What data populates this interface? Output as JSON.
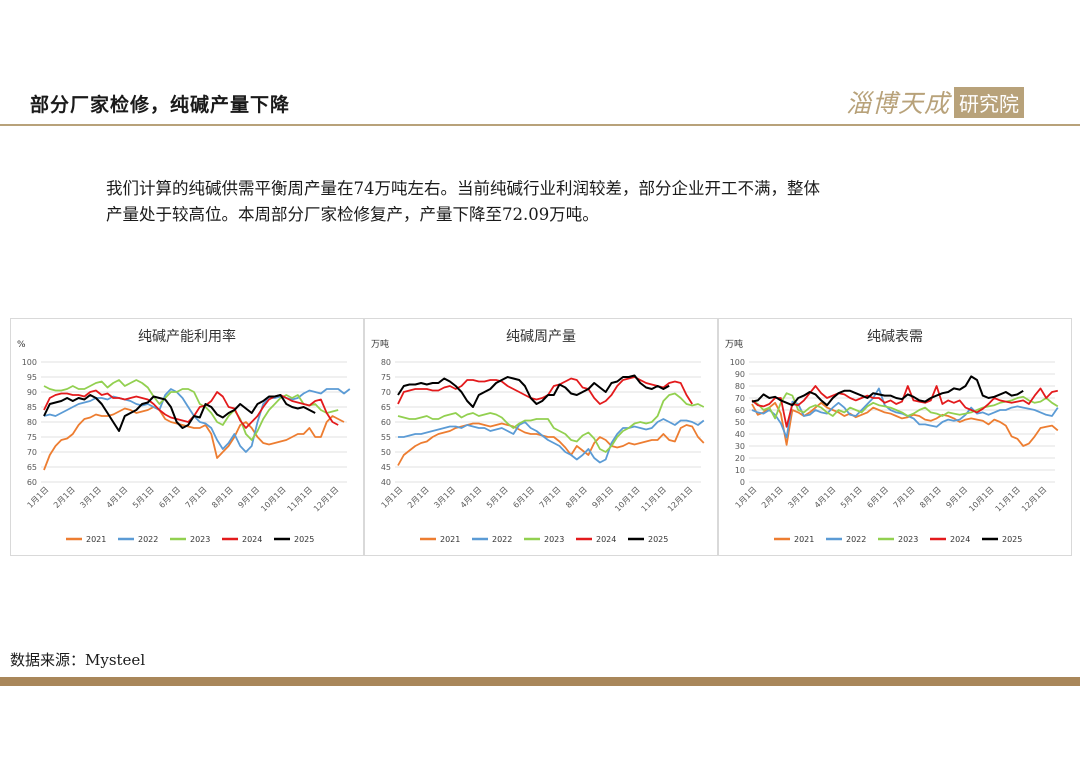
{
  "header": {
    "title": "部分厂家检修，纯碱产量下降",
    "logo_text": "淄博天成",
    "logo_box": "研究院"
  },
  "body": {
    "line1": "我们计算的纯碱供需平衡周产量在74万吨左右。当前纯碱行业利润较差，部分企业开工不满，整体",
    "line2": "产量处于较高位。本周部分厂家检修复产，产量下降至72.09万吨。"
  },
  "footer": {
    "source": "数据来源：Mysteel"
  },
  "colors": {
    "2021": "#ed7d31",
    "2022": "#5b9bd5",
    "2023": "#92d050",
    "2024": "#e31a1c",
    "2025": "#000000",
    "accent": "#b8a27a"
  },
  "chart_data": [
    {
      "type": "line",
      "title": "纯碱产能利用率",
      "unit": "%",
      "ylim": [
        60,
        100
      ],
      "yticks": [
        60,
        65,
        70,
        75,
        80,
        85,
        90,
        95,
        100
      ],
      "xticks": [
        "1月1日",
        "2月1日",
        "3月1日",
        "4月1日",
        "5月1日",
        "6月1日",
        "7月1日",
        "8月1日",
        "9月1日",
        "10月1日",
        "11月1日",
        "12月1日"
      ],
      "series": [
        {
          "name": "2021",
          "values": [
            64,
            69,
            72,
            74,
            74.5,
            76,
            79,
            81,
            81.5,
            82.5,
            82,
            82,
            82.5,
            83.5,
            84.5,
            84,
            83,
            83.5,
            84,
            85,
            84,
            81,
            80,
            79.5,
            79,
            78.5,
            78,
            78,
            79,
            76,
            68,
            70,
            72,
            75,
            79,
            80,
            78,
            75,
            73,
            72.5,
            73,
            73.5,
            74,
            75,
            76,
            76,
            78,
            75,
            75,
            80,
            82,
            81,
            80
          ]
        },
        {
          "name": "2022",
          "values": [
            82,
            82.5,
            82,
            83,
            84,
            85,
            86,
            86.5,
            87,
            88,
            88,
            87.5,
            88.5,
            88,
            87.5,
            87,
            86,
            85.5,
            86,
            85,
            84,
            89,
            91,
            90,
            88,
            85,
            82,
            80,
            79.5,
            78,
            74,
            71,
            73,
            76,
            72,
            70,
            72,
            80,
            86,
            88,
            88,
            88.5,
            88,
            87.5,
            88,
            89.5,
            90.5,
            90,
            89.5,
            91,
            91,
            91,
            89.5,
            91
          ]
        },
        {
          "name": "2023",
          "values": [
            92,
            91,
            90.5,
            90.5,
            91,
            92,
            91,
            91,
            92,
            93,
            93.5,
            91.5,
            93,
            94,
            92,
            93,
            94,
            93,
            91.5,
            88.5,
            86,
            88,
            90,
            90,
            91,
            91,
            90,
            86,
            85,
            83,
            80,
            79,
            82,
            84,
            81,
            76,
            74,
            77,
            81,
            84,
            86,
            88,
            89,
            88,
            89,
            86,
            85.5,
            86,
            84,
            83,
            83.5,
            84
          ]
        },
        {
          "name": "2024",
          "values": [
            84,
            88,
            89,
            89.5,
            89.5,
            89,
            89,
            88.5,
            90,
            90.5,
            89,
            89.5,
            88,
            88,
            87.5,
            88,
            88.5,
            88,
            87.5,
            86,
            84,
            82.5,
            81.5,
            81,
            80.5,
            80,
            82,
            85,
            85.5,
            87,
            90,
            88.5,
            85,
            84.5,
            80.5,
            78,
            80,
            82,
            85,
            87.5,
            88.5,
            89,
            88,
            87,
            86.5,
            86,
            85.5,
            87,
            87.5,
            83,
            80,
            79
          ]
        },
        {
          "name": "2025",
          "values": [
            82,
            86,
            86.5,
            87,
            88,
            87,
            88,
            87.5,
            89,
            88,
            86,
            83,
            80,
            77,
            82,
            83,
            84,
            86,
            86.5,
            88.5,
            88,
            87.5,
            85,
            80,
            78,
            79,
            82,
            81.5,
            86,
            85,
            82.5,
            81.5,
            83,
            84,
            86,
            84.5,
            83,
            86,
            87,
            88.5,
            88.5,
            89,
            86,
            85,
            84.5,
            85,
            84,
            83
          ]
        }
      ]
    },
    {
      "type": "line",
      "title": "纯碱周产量",
      "unit": "万吨",
      "ylim": [
        40,
        80
      ],
      "yticks": [
        40,
        45,
        50,
        55,
        60,
        65,
        70,
        75,
        80
      ],
      "xticks": [
        "1月1日",
        "2月1日",
        "3月1日",
        "4月1日",
        "5月1日",
        "6月1日",
        "7月1日",
        "8月1日",
        "9月1日",
        "10月1日",
        "11月1日",
        "12月1日"
      ],
      "series": [
        {
          "name": "2021",
          "values": [
            45.5,
            49,
            50.5,
            52,
            53,
            53.5,
            55,
            56,
            56.5,
            57,
            58,
            58.5,
            59,
            59.5,
            59.5,
            59,
            58.5,
            59,
            59.5,
            59,
            58.5,
            57.5,
            56.5,
            56,
            56,
            55.5,
            55,
            55,
            53.5,
            51.5,
            49,
            52,
            50.5,
            49,
            53,
            55,
            54,
            52,
            51.5,
            52,
            53,
            52.5,
            53,
            53.5,
            54,
            54,
            56,
            54,
            53.5,
            58,
            59,
            58.5,
            55,
            53
          ]
        },
        {
          "name": "2022",
          "values": [
            55,
            55,
            55.5,
            56,
            56,
            56.5,
            57,
            57.5,
            58,
            58.5,
            58.5,
            58,
            59,
            58.5,
            58,
            58,
            57,
            57.5,
            58,
            57,
            56,
            59,
            60,
            58,
            57,
            55.5,
            54,
            53,
            52,
            50,
            49,
            47.5,
            49,
            51,
            48,
            46.5,
            47.5,
            53,
            56,
            58,
            58,
            58.5,
            58,
            57.5,
            58,
            60,
            61,
            60,
            59,
            60.5,
            60.5,
            60,
            59,
            60.5
          ]
        },
        {
          "name": "2023",
          "values": [
            62,
            61.5,
            61,
            61,
            61.5,
            62,
            61,
            61,
            62,
            62.5,
            63,
            61.5,
            62.5,
            63,
            62,
            62.5,
            63,
            62.5,
            61.5,
            59.5,
            58,
            59.5,
            60.5,
            60.5,
            61,
            61,
            61,
            58,
            57,
            56,
            54,
            53.5,
            55.5,
            56.5,
            54.5,
            51,
            50,
            52,
            55,
            57,
            58,
            59.5,
            60,
            59.5,
            60,
            62,
            67,
            69,
            69.5,
            68,
            66,
            65.5,
            66,
            65
          ]
        },
        {
          "name": "2024",
          "values": [
            66,
            70,
            70.5,
            71,
            71,
            71,
            70.5,
            70.5,
            71.5,
            72,
            71,
            72,
            74,
            74,
            73.5,
            73.5,
            74,
            74,
            73.5,
            72,
            71,
            70,
            69,
            68,
            67.5,
            68,
            69,
            72,
            72.5,
            73.5,
            74.5,
            74,
            71.5,
            71,
            68,
            66,
            67,
            69,
            72,
            74,
            74.5,
            75,
            74,
            73,
            72.5,
            72,
            71.5,
            73,
            73.5,
            73,
            69,
            66
          ]
        },
        {
          "name": "2025",
          "values": [
            69,
            72,
            72.5,
            72.5,
            73,
            72.5,
            73,
            73,
            74.5,
            73.5,
            72,
            70,
            67,
            65,
            69,
            70,
            71,
            73,
            74,
            75,
            74.5,
            74,
            72,
            68,
            66,
            67,
            69,
            69,
            72.5,
            71.5,
            69.5,
            69,
            70,
            71,
            73,
            71.5,
            70,
            73,
            73.5,
            75,
            75,
            75.5,
            73,
            71.5,
            71,
            72,
            71,
            72.09
          ]
        }
      ]
    },
    {
      "type": "line",
      "title": "纯碱表需",
      "unit": "万吨",
      "ylim": [
        0,
        100
      ],
      "yticks": [
        0,
        10,
        20,
        30,
        40,
        50,
        60,
        70,
        80,
        90,
        100
      ],
      "xticks": [
        "1月1日",
        "2月1日",
        "3月1日",
        "4月1日",
        "5月1日",
        "6月1日",
        "7月1日",
        "8月1日",
        "9月1日",
        "10月1日",
        "11月1日",
        "12月1日"
      ],
      "series": [
        {
          "name": "2021",
          "values": [
            65,
            56,
            58,
            62,
            66,
            57,
            31,
            60,
            58,
            55,
            58,
            62,
            66,
            62,
            60,
            58,
            55,
            57,
            54,
            56,
            58,
            62,
            60,
            58,
            57,
            55,
            53,
            54,
            56,
            55,
            52,
            51,
            53,
            56,
            55,
            53,
            50,
            52,
            53,
            52,
            51,
            48,
            52,
            50,
            47,
            38,
            36,
            30,
            32,
            38,
            45,
            46,
            47,
            43
          ]
        },
        {
          "name": "2022",
          "values": [
            60,
            58,
            57,
            60,
            56,
            49,
            37,
            67,
            65,
            55,
            56,
            60,
            58,
            57,
            62,
            66,
            62,
            56,
            55,
            60,
            65,
            70,
            78,
            64,
            60,
            58,
            57,
            55,
            53,
            48,
            48,
            47,
            46,
            50,
            52,
            51,
            52,
            56,
            62,
            57,
            58,
            56,
            58,
            60,
            60,
            62,
            63,
            62,
            61,
            60,
            58,
            56,
            55,
            62
          ]
        },
        {
          "name": "2023",
          "values": [
            68,
            65,
            60,
            62,
            53,
            66,
            74,
            72,
            60,
            58,
            62,
            64,
            62,
            58,
            55,
            60,
            58,
            62,
            60,
            58,
            63,
            66,
            64,
            63,
            62,
            60,
            58,
            55,
            57,
            60,
            62,
            58,
            57,
            55,
            58,
            57,
            56,
            57,
            58,
            60,
            62,
            63,
            64,
            66,
            67,
            68,
            70,
            71,
            68,
            66,
            67,
            70,
            66,
            63
          ]
        },
        {
          "name": "2024",
          "values": [
            68,
            64,
            63,
            65,
            70,
            70,
            46,
            65,
            64,
            68,
            74,
            80,
            74,
            70,
            72,
            74,
            73,
            70,
            68,
            70,
            72,
            70,
            70,
            66,
            68,
            65,
            67,
            80,
            68,
            67,
            66,
            68,
            80,
            65,
            68,
            66,
            68,
            62,
            60,
            58,
            61,
            65,
            70,
            68,
            67,
            66,
            67,
            68,
            65,
            72,
            78,
            70,
            75,
            76
          ]
        },
        {
          "name": "2025",
          "values": [
            67,
            68,
            73,
            70,
            71,
            68,
            66,
            64,
            70,
            72,
            75,
            73,
            68,
            64,
            70,
            74,
            76,
            76,
            74,
            72,
            70,
            74,
            73,
            72,
            72,
            70,
            69,
            73,
            71,
            68,
            67,
            70,
            72,
            74,
            75,
            78,
            77,
            80,
            88,
            85,
            72,
            70,
            71,
            73,
            75,
            72,
            73,
            76
          ]
        }
      ]
    }
  ]
}
